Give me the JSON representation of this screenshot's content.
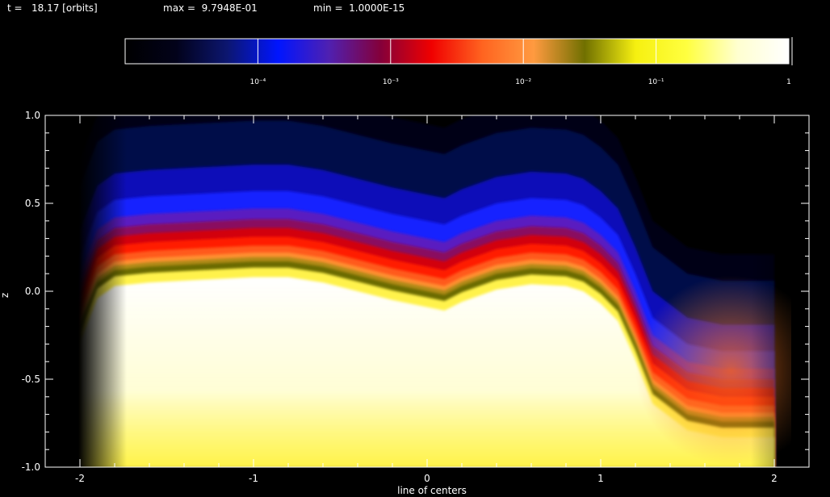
{
  "header": {
    "time_text": "t =   18.17 [orbits]",
    "max_text": "max =  9.7948E-01",
    "min_text": "min =  1.0000E-15"
  },
  "colorbar": {
    "tick_labels": [
      "10⁻⁴",
      "10⁻³",
      "10⁻²",
      "10⁻¹",
      "1"
    ],
    "tick_values": [
      0.0001,
      0.001,
      0.01,
      0.1,
      1
    ],
    "range": [
      1e-05,
      1
    ],
    "colormap": [
      "#000000",
      "#02021a",
      "#0c1670",
      "#0015ff",
      "#5020b0",
      "#84003a",
      "#f00000",
      "#ff6420",
      "#ff9a40",
      "#707000",
      "#f6f010",
      "#ffff40",
      "#ffffd0",
      "#ffffff"
    ]
  },
  "chart_data": {
    "type": "heatmap",
    "title": "",
    "xlabel": "line of centers",
    "ylabel": "z",
    "xlim": [
      -2.2,
      2.2
    ],
    "ylim": [
      -1.0,
      1.0
    ],
    "x_ticks": [
      "-2",
      "-1",
      "0",
      "1",
      "2"
    ],
    "x_tick_values": [
      -2,
      -1,
      0,
      1,
      2
    ],
    "y_ticks": [
      "-1.0",
      "-0.5",
      "0.0",
      "0.5",
      "1.0"
    ],
    "y_tick_values": [
      -1.0,
      -0.5,
      0.0,
      0.5,
      1.0
    ],
    "color_scale": "log",
    "field_extent_x": [
      -2.0,
      2.0
    ],
    "surface_profile": {
      "x": [
        -2.0,
        -1.9,
        -1.8,
        -1.6,
        -1.4,
        -1.2,
        -1.0,
        -0.8,
        -0.6,
        -0.4,
        -0.2,
        0.0,
        0.1,
        0.2,
        0.4,
        0.6,
        0.8,
        0.9,
        1.0,
        1.1,
        1.2,
        1.3,
        1.5,
        1.7,
        1.9,
        2.0
      ],
      "z": [
        -0.2,
        0.05,
        0.12,
        0.14,
        0.15,
        0.16,
        0.17,
        0.17,
        0.14,
        0.09,
        0.04,
        0.0,
        -0.02,
        0.03,
        0.1,
        0.13,
        0.12,
        0.09,
        0.02,
        -0.08,
        -0.3,
        -0.55,
        -0.7,
        -0.74,
        -0.74,
        -0.74
      ]
    }
  }
}
